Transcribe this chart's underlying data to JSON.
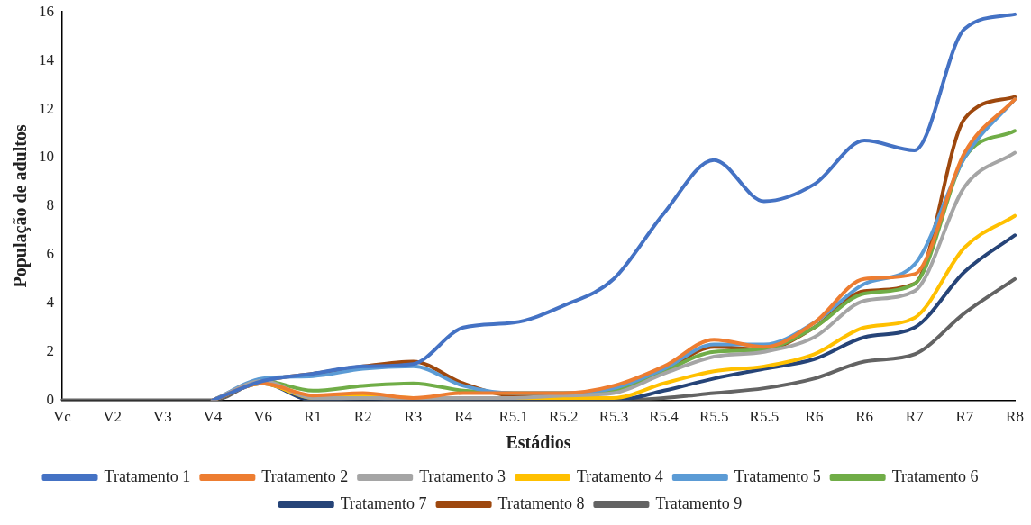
{
  "chart_data": {
    "type": "line",
    "xlabel": "Estádios",
    "ylabel": "População de adultos",
    "categories": [
      "Vc",
      "V2",
      "V3",
      "V4",
      "V6",
      "R1",
      "R2",
      "R3",
      "R4",
      "R5.1",
      "R5.2",
      "R5.3",
      "R5.4",
      "R5.5",
      "R5.5",
      "R6",
      "R6",
      "R7",
      "R7",
      "R8"
    ],
    "ylim": [
      0,
      16
    ],
    "yticks": [
      0,
      2,
      4,
      6,
      8,
      10,
      12,
      14,
      16
    ],
    "grid": false,
    "legend": "bottom",
    "marker": "none",
    "line_style": "solid",
    "series": [
      {
        "name": "Tratamento 1",
        "color": "#4472c4",
        "values": [
          null,
          null,
          null,
          0,
          0.8,
          1.1,
          1.4,
          1.5,
          3.0,
          3.2,
          3.9,
          5.0,
          7.7,
          9.9,
          8.2,
          8.9,
          10.7,
          10.3,
          15.3,
          15.9
        ]
      },
      {
        "name": "Tratamento 2",
        "color": "#ed7d31",
        "values": [
          null,
          null,
          null,
          0,
          0.7,
          0.2,
          0.3,
          0.1,
          0.3,
          0.3,
          0.3,
          0.6,
          1.4,
          2.5,
          2.2,
          3.2,
          5.0,
          5.2,
          10.2,
          12.4
        ]
      },
      {
        "name": "Tratamento 3",
        "color": "#a5a5a5",
        "values": [
          null,
          null,
          null,
          0,
          0.8,
          0.1,
          0.1,
          0.1,
          0.1,
          0.1,
          0.2,
          0.3,
          1.1,
          1.8,
          2.0,
          2.6,
          4.1,
          4.5,
          8.8,
          10.2
        ]
      },
      {
        "name": "Tratamento 4",
        "color": "#ffc000",
        "values": [
          null,
          null,
          null,
          0,
          0.7,
          0.1,
          0.2,
          0.1,
          0.1,
          0.1,
          0.1,
          0.1,
          0.7,
          1.2,
          1.4,
          1.9,
          3.0,
          3.4,
          6.3,
          7.6
        ]
      },
      {
        "name": "Tratamento 5",
        "color": "#5b9bd5",
        "values": [
          null,
          null,
          null,
          0,
          0.9,
          1.0,
          1.3,
          1.4,
          0.6,
          0.3,
          0.3,
          0.5,
          1.3,
          2.3,
          2.3,
          3.2,
          4.8,
          5.6,
          10.0,
          12.4
        ]
      },
      {
        "name": "Tratamento 6",
        "color": "#70ad47",
        "values": [
          null,
          null,
          null,
          0,
          0.8,
          0.4,
          0.6,
          0.7,
          0.4,
          0.3,
          0.3,
          0.4,
          1.2,
          2.0,
          2.1,
          3.0,
          4.4,
          4.8,
          10.0,
          11.1
        ]
      },
      {
        "name": "Tratamento 7",
        "color": "#264478",
        "values": [
          null,
          null,
          null,
          0,
          0.7,
          0,
          0,
          0,
          0,
          0,
          0,
          0,
          0.4,
          0.9,
          1.3,
          1.7,
          2.6,
          3.0,
          5.3,
          6.8
        ]
      },
      {
        "name": "Tratamento 8",
        "color": "#9e480e",
        "values": [
          null,
          null,
          null,
          0,
          0.8,
          1.1,
          1.4,
          1.6,
          0.7,
          0.2,
          0.2,
          0.4,
          1.2,
          2.2,
          2.1,
          3.0,
          4.5,
          4.8,
          11.6,
          12.5
        ]
      },
      {
        "name": "Tratamento 9",
        "color": "#636363",
        "values": [
          0,
          0,
          0,
          0,
          0.8,
          0,
          0.1,
          0,
          0,
          0,
          0,
          0,
          0.1,
          0.3,
          0.5,
          0.9,
          1.6,
          1.9,
          3.6,
          5.0
        ]
      }
    ]
  }
}
